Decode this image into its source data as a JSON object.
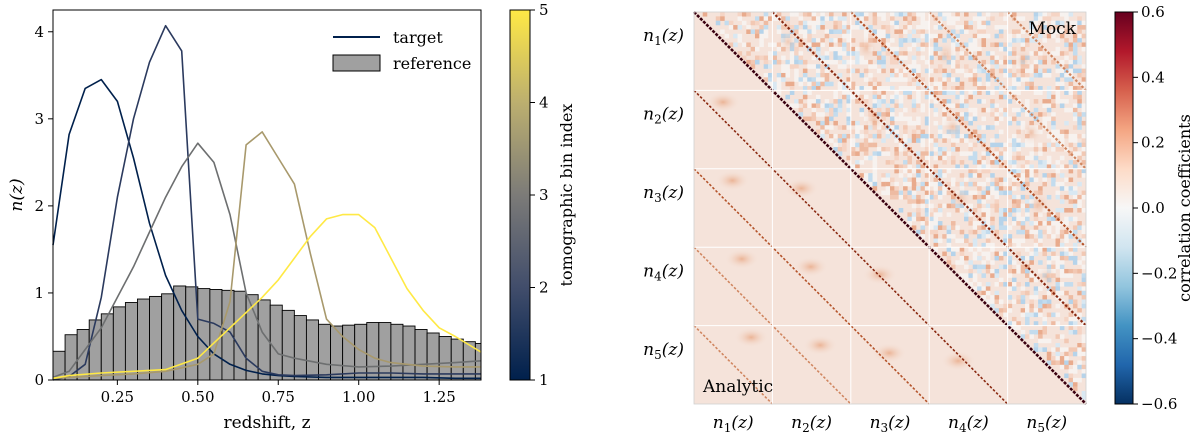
{
  "chart_data": [
    {
      "type": "line+histogram",
      "xlabel": "redshift, z",
      "ylabel": "n(z)",
      "xlim": [
        0.05,
        1.38
      ],
      "ylim": [
        0,
        4.25
      ],
      "xticks": [
        0.25,
        0.5,
        0.75,
        1.0,
        1.25
      ],
      "xtick_labels": [
        "0.25",
        "0.50",
        "0.75",
        "1.00",
        "1.25"
      ],
      "yticks": [
        0,
        1,
        2,
        3,
        4
      ],
      "ytick_labels": [
        "0",
        "1",
        "2",
        "3",
        "4"
      ],
      "legend": {
        "position": "top-right",
        "entries": [
          "target",
          "reference"
        ]
      },
      "colorbar": {
        "label": "tomographic bin index",
        "range": [
          1,
          5
        ],
        "ticks": [
          1,
          2,
          3,
          4,
          5
        ],
        "tick_labels": [
          "1",
          "2",
          "3",
          "4",
          "5"
        ],
        "colormap": [
          "#00204c",
          "#414d6b",
          "#7c7b78",
          "#bcaf6f",
          "#ffe945"
        ]
      },
      "reference_histogram": {
        "x0": 0.05,
        "bin_width": 0.0375,
        "values": [
          0.33,
          0.52,
          0.58,
          0.69,
          0.76,
          0.84,
          0.89,
          0.93,
          0.96,
          0.99,
          1.08,
          1.07,
          1.05,
          1.04,
          1.03,
          1.02,
          0.98,
          0.92,
          0.86,
          0.8,
          0.74,
          0.69,
          0.64,
          0.62,
          0.63,
          0.64,
          0.66,
          0.66,
          0.64,
          0.62,
          0.58,
          0.54,
          0.5,
          0.47,
          0.44,
          0.42
        ]
      },
      "series": [
        {
          "name": "bin 1",
          "bin": 1,
          "color": "#00204c",
          "x": [
            0.05,
            0.1,
            0.15,
            0.2,
            0.25,
            0.3,
            0.35,
            0.4,
            0.45,
            0.5,
            0.55,
            0.6,
            0.65,
            0.7,
            0.75,
            0.8,
            0.9,
            1.0,
            1.1,
            1.2,
            1.3,
            1.38
          ],
          "y": [
            1.55,
            2.82,
            3.35,
            3.45,
            3.2,
            2.55,
            1.8,
            1.2,
            0.8,
            0.5,
            0.3,
            0.18,
            0.11,
            0.07,
            0.05,
            0.04,
            0.03,
            0.03,
            0.03,
            0.03,
            0.02,
            0.02
          ]
        },
        {
          "name": "bin 2",
          "bin": 2,
          "color": "#2b3a5e",
          "x": [
            0.05,
            0.1,
            0.15,
            0.2,
            0.25,
            0.3,
            0.35,
            0.4,
            0.45,
            0.5,
            0.55,
            0.6,
            0.65,
            0.7,
            0.75,
            0.8,
            0.9,
            1.0,
            1.1,
            1.2,
            1.3,
            1.38
          ],
          "y": [
            0.0,
            0.04,
            0.18,
            0.95,
            2.1,
            3.0,
            3.65,
            4.07,
            3.78,
            0.7,
            0.65,
            0.55,
            0.25,
            0.1,
            0.06,
            0.05,
            0.06,
            0.08,
            0.08,
            0.07,
            0.07,
            0.07
          ]
        },
        {
          "name": "bin 3",
          "bin": 3,
          "color": "#6d6f70",
          "x": [
            0.05,
            0.1,
            0.15,
            0.2,
            0.25,
            0.3,
            0.35,
            0.4,
            0.45,
            0.5,
            0.55,
            0.6,
            0.65,
            0.7,
            0.75,
            0.8,
            0.9,
            1.0,
            1.1,
            1.2,
            1.3,
            1.38
          ],
          "y": [
            0.03,
            0.1,
            0.35,
            0.6,
            0.95,
            1.3,
            1.7,
            2.1,
            2.45,
            2.72,
            2.5,
            1.9,
            1.0,
            0.55,
            0.3,
            0.25,
            0.18,
            0.15,
            0.16,
            0.18,
            0.2,
            0.22
          ]
        },
        {
          "name": "bin 4",
          "bin": 4,
          "color": "#a8996c",
          "x": [
            0.05,
            0.1,
            0.2,
            0.3,
            0.4,
            0.5,
            0.55,
            0.6,
            0.65,
            0.7,
            0.75,
            0.8,
            0.85,
            0.9,
            0.95,
            1.0,
            1.05,
            1.1,
            1.2,
            1.3,
            1.38
          ],
          "y": [
            0.02,
            0.03,
            0.05,
            0.07,
            0.1,
            0.18,
            0.3,
            0.9,
            2.7,
            2.85,
            2.55,
            2.25,
            1.45,
            0.7,
            0.5,
            0.35,
            0.25,
            0.2,
            0.16,
            0.15,
            0.15
          ]
        },
        {
          "name": "bin 5",
          "bin": 5,
          "color": "#ffe945",
          "x": [
            0.05,
            0.1,
            0.2,
            0.3,
            0.4,
            0.5,
            0.6,
            0.7,
            0.75,
            0.8,
            0.85,
            0.9,
            0.95,
            1.0,
            1.05,
            1.1,
            1.15,
            1.2,
            1.25,
            1.3,
            1.38
          ],
          "y": [
            0.02,
            0.05,
            0.08,
            0.1,
            0.12,
            0.25,
            0.6,
            0.95,
            1.15,
            1.4,
            1.65,
            1.85,
            1.9,
            1.9,
            1.75,
            1.4,
            1.05,
            0.8,
            0.6,
            0.5,
            0.32
          ]
        }
      ]
    },
    {
      "type": "heatmap",
      "title_top": "Mock",
      "title_bottom": "Analytic",
      "row_labels": [
        "n1(z)",
        "n2(z)",
        "n3(z)",
        "n4(z)",
        "n5(z)"
      ],
      "col_labels": [
        "n1(z)",
        "n2(z)",
        "n3(z)",
        "n4(z)",
        "n5(z)"
      ],
      "blocks": 5,
      "cells_per_block": 18,
      "upper_triangle": "Mock",
      "lower_triangle": "Analytic",
      "colorbar": {
        "label": "correlation coefficients",
        "range": [
          -0.6,
          0.6
        ],
        "ticks": [
          0.6,
          0.4,
          0.2,
          0.0,
          -0.2,
          -0.4,
          -0.6
        ],
        "tick_labels": [
          "0.6",
          "0.4",
          "0.2",
          "0.0",
          "−0.2",
          "−0.4",
          "−0.6"
        ],
        "colormap": [
          "#053061",
          "#2166ac",
          "#4393c3",
          "#92c5de",
          "#d1e5f0",
          "#f7f7f7",
          "#fddbc7",
          "#f4a582",
          "#d6604d",
          "#b2182b",
          "#67001f"
        ]
      }
    }
  ]
}
